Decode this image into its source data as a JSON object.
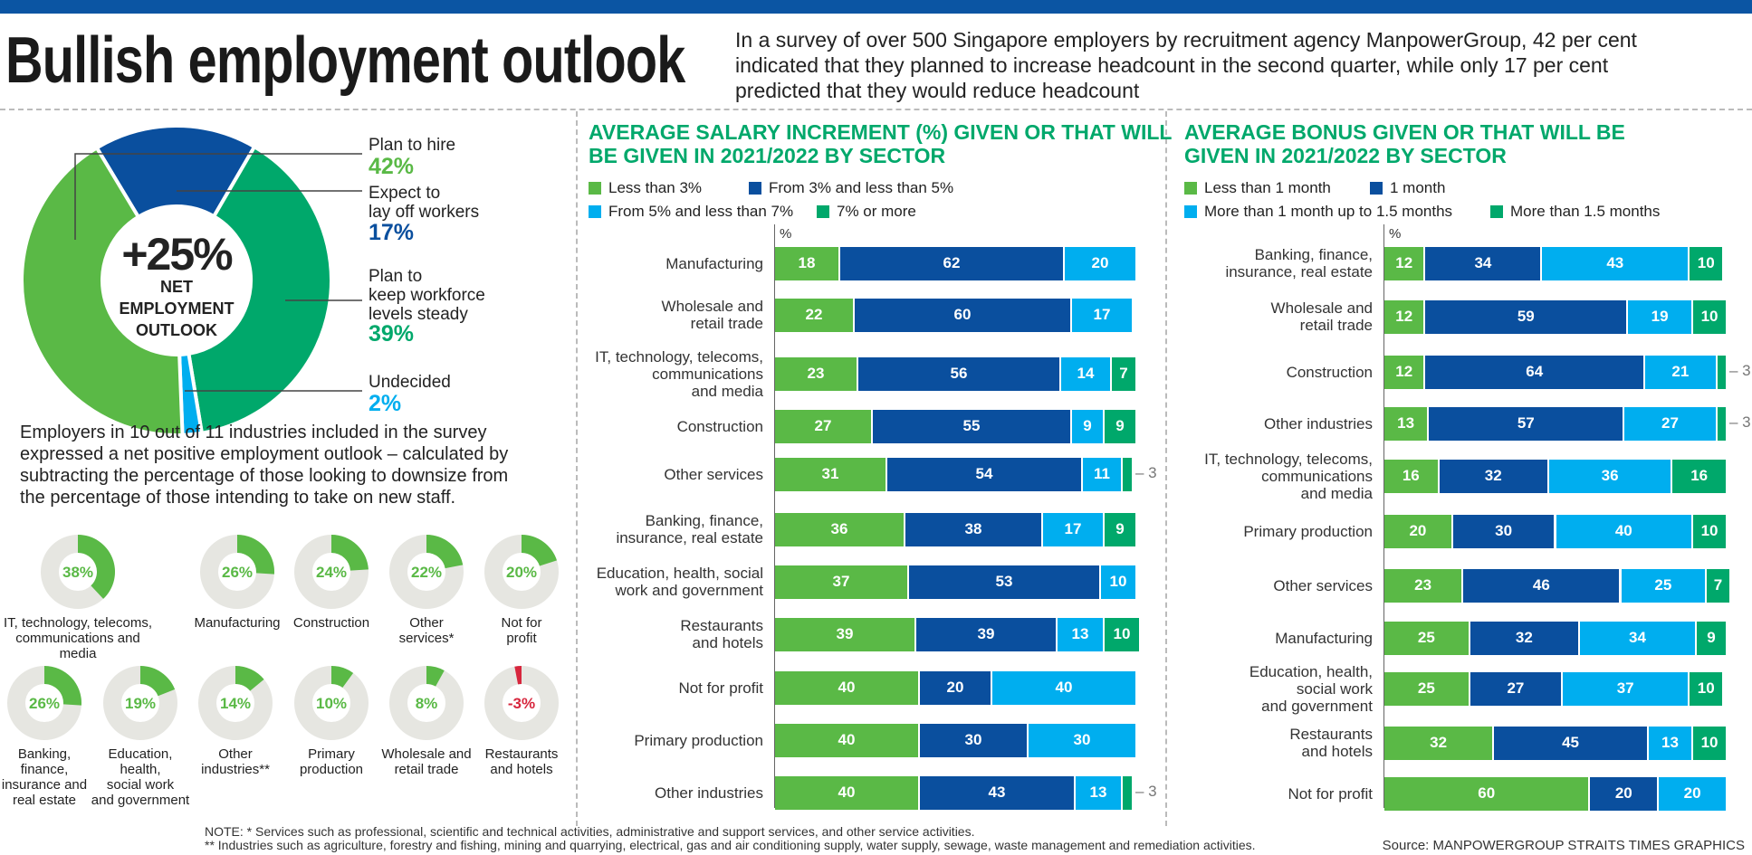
{
  "header": {
    "title": "Bullish employment outlook",
    "intro": "In a survey of over 500 Singapore employers by recruitment agency ManpowerGroup, 42 per cent\nindicated that they planned to increase headcount in the second quarter, while only 17 per cent\npredicted that they would reduce headcount"
  },
  "colors": {
    "light_green": "#5ab946",
    "dark_blue": "#0a4f9e",
    "cyan": "#00aeef",
    "green": "#00a86b",
    "gray": "#e6e6e1",
    "negative": "#d7263d"
  },
  "overview": {
    "center_value": "+25%",
    "center_label": "NET\nEMPLOYMENT\nOUTLOOK",
    "segments": [
      {
        "label": "Plan to hire",
        "value": 42,
        "display": "42%",
        "color": "#5ab946"
      },
      {
        "label": "Expect to\nlay off workers",
        "value": 17,
        "display": "17%",
        "color": "#0a4f9e"
      },
      {
        "label": "Plan to\nkeep workforce\nlevels steady",
        "value": 39,
        "display": "39%",
        "color": "#00a86b"
      },
      {
        "label": "Undecided",
        "value": 2,
        "display": "2%",
        "color": "#00aeef"
      }
    ]
  },
  "industries": {
    "intro": "Employers in 10 out of 11 industries included in the survey\nexpressed a net positive employment outlook – calculated by\nsubtracting the percentage of those looking to downsize from\nthe percentage of those intending to take on new staff.",
    "items": [
      {
        "label": "IT, technology, telecoms,\ncommunications and\nmedia",
        "value": 38,
        "display": "38%"
      },
      {
        "label": "Manufacturing",
        "value": 26,
        "display": "26%"
      },
      {
        "label": "Construction",
        "value": 24,
        "display": "24%"
      },
      {
        "label": "Other\nservices*",
        "value": 22,
        "display": "22%"
      },
      {
        "label": "Not for\nprofit",
        "value": 20,
        "display": "20%"
      },
      {
        "label": "Banking,\nfinance,\ninsurance and\nreal estate",
        "value": 26,
        "display": "26%"
      },
      {
        "label": "Education,\nhealth,\nsocial work\nand government",
        "value": 19,
        "display": "19%"
      },
      {
        "label": "Other\nindustries**",
        "value": 14,
        "display": "14%"
      },
      {
        "label": "Primary\nproduction",
        "value": 10,
        "display": "10%"
      },
      {
        "label": "Wholesale and\nretail trade",
        "value": 8,
        "display": "8%"
      },
      {
        "label": "Restaurants\nand hotels",
        "value": -3,
        "display": "-3%"
      }
    ]
  },
  "chart_data": [
    {
      "type": "bar",
      "orientation": "horizontal-stacked",
      "title": "AVERAGE SALARY INCREMENT (%) GIVEN OR THAT WILL\nBE GIVEN IN 2021/2022 BY SECTOR",
      "unit_label": "%",
      "xlim": [
        0,
        100
      ],
      "legend": [
        "Less than 3%",
        "From 3% and less than 5%",
        "From 5% and less than 7%",
        "7% or more"
      ],
      "categories": [
        "Manufacturing",
        "Wholesale and\nretail trade",
        "IT, technology, telecoms,\ncommunications\nand media",
        "Construction",
        "Other services",
        "Banking, finance,\ninsurance, real estate",
        "Education, health, social\nwork and government",
        "Restaurants\nand hotels",
        "Not for profit",
        "Primary production",
        "Other industries"
      ],
      "series": [
        {
          "name": "Less than 3%",
          "color": "#5ab946",
          "values": [
            18,
            22,
            23,
            27,
            31,
            36,
            37,
            39,
            40,
            40,
            40
          ]
        },
        {
          "name": "From 3% and less than 5%",
          "color": "#0a4f9e",
          "values": [
            62,
            60,
            56,
            55,
            54,
            38,
            53,
            39,
            20,
            30,
            43
          ]
        },
        {
          "name": "From 5% and less than 7%",
          "color": "#00aeef",
          "values": [
            20,
            17,
            14,
            9,
            11,
            17,
            10,
            13,
            40,
            30,
            13
          ]
        },
        {
          "name": "7% or more",
          "color": "#00a86b",
          "values": [
            0,
            0,
            7,
            9,
            3,
            9,
            0,
            10,
            0,
            0,
            3
          ]
        }
      ]
    },
    {
      "type": "bar",
      "orientation": "horizontal-stacked",
      "title": "AVERAGE BONUS GIVEN OR THAT WILL BE\nGIVEN IN 2021/2022 BY SECTOR",
      "unit_label": "%",
      "xlim": [
        0,
        100
      ],
      "legend": [
        "Less than 1 month",
        "1 month",
        "More than 1 month up to 1.5 months",
        "More than 1.5 months"
      ],
      "categories": [
        "Banking, finance,\ninsurance, real estate",
        "Wholesale and\nretail trade",
        "Construction",
        "Other industries",
        "IT, technology, telecoms,\ncommunications\nand media",
        "Primary production",
        "Other services",
        "Manufacturing",
        "Education, health,\nsocial work\nand government",
        "Restaurants\nand hotels",
        "Not for profit"
      ],
      "series": [
        {
          "name": "Less than 1 month",
          "color": "#5ab946",
          "values": [
            12,
            12,
            12,
            13,
            16,
            20,
            23,
            25,
            25,
            32,
            60
          ]
        },
        {
          "name": "1 month",
          "color": "#0a4f9e",
          "values": [
            34,
            59,
            64,
            57,
            32,
            30,
            46,
            32,
            27,
            45,
            20
          ]
        },
        {
          "name": "More than 1 month up to 1.5 months",
          "color": "#00aeef",
          "values": [
            43,
            19,
            21,
            27,
            36,
            40,
            25,
            34,
            37,
            13,
            20
          ]
        },
        {
          "name": "More than 1.5 months",
          "color": "#00a86b",
          "values": [
            10,
            10,
            3,
            3,
            16,
            10,
            7,
            9,
            10,
            10,
            0
          ]
        }
      ]
    }
  ],
  "notes": {
    "note1": "NOTE: * Services such as professional, scientific and technical activities, administrative and support services, and other service activities.",
    "note2": "** Industries such as agriculture, forestry and fishing, mining and quarrying, electrical, gas and air conditioning supply, water supply, sewage, waste management and remediation activities.",
    "source": "Source: MANPOWERGROUP   STRAITS TIMES GRAPHICS"
  }
}
